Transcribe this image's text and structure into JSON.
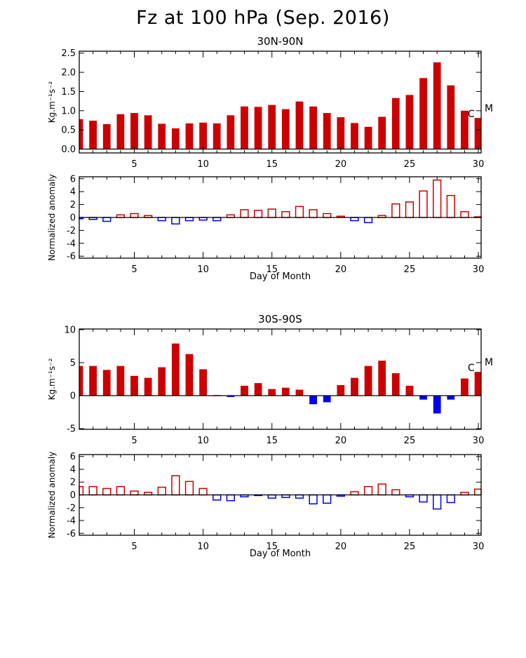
{
  "title": "Fz at 100 hPa (Sep. 2016)",
  "colors": {
    "positive": "#cc0000",
    "negative": "#0000ee",
    "axis": "#000000"
  },
  "chart_data": [
    {
      "type": "bar",
      "panel_title": "30N-90N",
      "ylabel": "Kg.m⁻¹s⁻²",
      "ylim": [
        -0.1,
        2.55
      ],
      "yticks": [
        "0.0",
        "0.5",
        "1.0",
        "1.5",
        "2.0",
        "2.5"
      ],
      "xticks": [
        "5",
        "10",
        "15",
        "20",
        "25",
        "30"
      ],
      "xlim": [
        1,
        30.2
      ],
      "fill": "filled",
      "x": [
        1,
        2,
        3,
        4,
        5,
        6,
        7,
        8,
        9,
        10,
        11,
        12,
        13,
        14,
        15,
        16,
        17,
        18,
        19,
        20,
        21,
        22,
        23,
        24,
        25,
        26,
        27,
        28,
        29,
        30
      ],
      "values": [
        0.78,
        0.74,
        0.65,
        0.91,
        0.94,
        0.88,
        0.66,
        0.54,
        0.67,
        0.69,
        0.67,
        0.88,
        1.11,
        1.1,
        1.15,
        1.04,
        1.24,
        1.11,
        0.94,
        0.83,
        0.68,
        0.58,
        0.84,
        1.33,
        1.41,
        1.85,
        2.26,
        1.66,
        1.0,
        0.81
      ],
      "annotations": [
        "C",
        "M"
      ]
    },
    {
      "type": "bar",
      "ylabel": "Normalized anomaly",
      "xlabel": "Day of Month",
      "ylim": [
        -6.3,
        6.3
      ],
      "yticks": [
        "-6",
        "-4",
        "-2",
        "0",
        "2",
        "4",
        "6"
      ],
      "xticks": [
        "5",
        "10",
        "15",
        "20",
        "25",
        "30"
      ],
      "xlim": [
        1,
        30.2
      ],
      "fill": "outline",
      "x": [
        1,
        2,
        3,
        4,
        5,
        6,
        7,
        8,
        9,
        10,
        11,
        12,
        13,
        14,
        15,
        16,
        17,
        18,
        19,
        20,
        21,
        22,
        23,
        24,
        25,
        26,
        27,
        28,
        29,
        30
      ],
      "values": [
        -0.2,
        -0.3,
        -0.6,
        0.4,
        0.6,
        0.3,
        -0.5,
        -1.0,
        -0.5,
        -0.4,
        -0.5,
        0.4,
        1.2,
        1.1,
        1.3,
        0.9,
        1.7,
        1.2,
        0.6,
        0.2,
        -0.5,
        -0.8,
        0.3,
        2.1,
        2.4,
        4.1,
        5.8,
        3.4,
        0.9,
        0.1
      ]
    },
    {
      "type": "bar",
      "panel_title": "30S-90S",
      "ylabel": "Kg.m⁻¹s⁻²",
      "ylim": [
        -5.1,
        10.1
      ],
      "yticks": [
        "-5",
        "0",
        "5",
        "10"
      ],
      "xticks": [
        "5",
        "10",
        "15",
        "20",
        "25",
        "30"
      ],
      "xlim": [
        1,
        30.2
      ],
      "fill": "filled",
      "x": [
        1,
        2,
        3,
        4,
        5,
        6,
        7,
        8,
        9,
        10,
        11,
        12,
        13,
        14,
        15,
        16,
        17,
        18,
        19,
        20,
        21,
        22,
        23,
        24,
        25,
        26,
        27,
        28,
        29,
        30
      ],
      "values": [
        4.5,
        4.5,
        3.9,
        4.5,
        3.0,
        2.7,
        4.3,
        7.9,
        6.3,
        4.0,
        0.1,
        -0.2,
        1.5,
        1.9,
        1.0,
        1.2,
        0.9,
        -1.3,
        -1.0,
        1.6,
        2.7,
        4.5,
        5.3,
        3.4,
        1.5,
        -0.6,
        -2.7,
        -0.6,
        2.6,
        3.6
      ],
      "annotations": [
        "C",
        "M"
      ]
    },
    {
      "type": "bar",
      "ylabel": "Normalized anomaly",
      "xlabel": "Day of Month",
      "ylim": [
        -6.3,
        6.3
      ],
      "yticks": [
        "-6",
        "-4",
        "-2",
        "0",
        "2",
        "4",
        "6"
      ],
      "xticks": [
        "5",
        "10",
        "15",
        "20",
        "25",
        "30"
      ],
      "xlim": [
        1,
        30.2
      ],
      "fill": "outline",
      "x": [
        1,
        2,
        3,
        4,
        5,
        6,
        7,
        8,
        9,
        10,
        11,
        12,
        13,
        14,
        15,
        16,
        17,
        18,
        19,
        20,
        21,
        22,
        23,
        24,
        25,
        26,
        27,
        28,
        29,
        30
      ],
      "values": [
        1.3,
        1.3,
        1.0,
        1.3,
        0.6,
        0.4,
        1.2,
        3.0,
        2.1,
        1.0,
        -0.8,
        -0.9,
        -0.3,
        -0.1,
        -0.5,
        -0.4,
        -0.5,
        -1.4,
        -1.3,
        -0.2,
        0.5,
        1.3,
        1.7,
        0.8,
        -0.3,
        -1.1,
        -2.2,
        -1.2,
        0.4,
        0.9
      ]
    }
  ]
}
